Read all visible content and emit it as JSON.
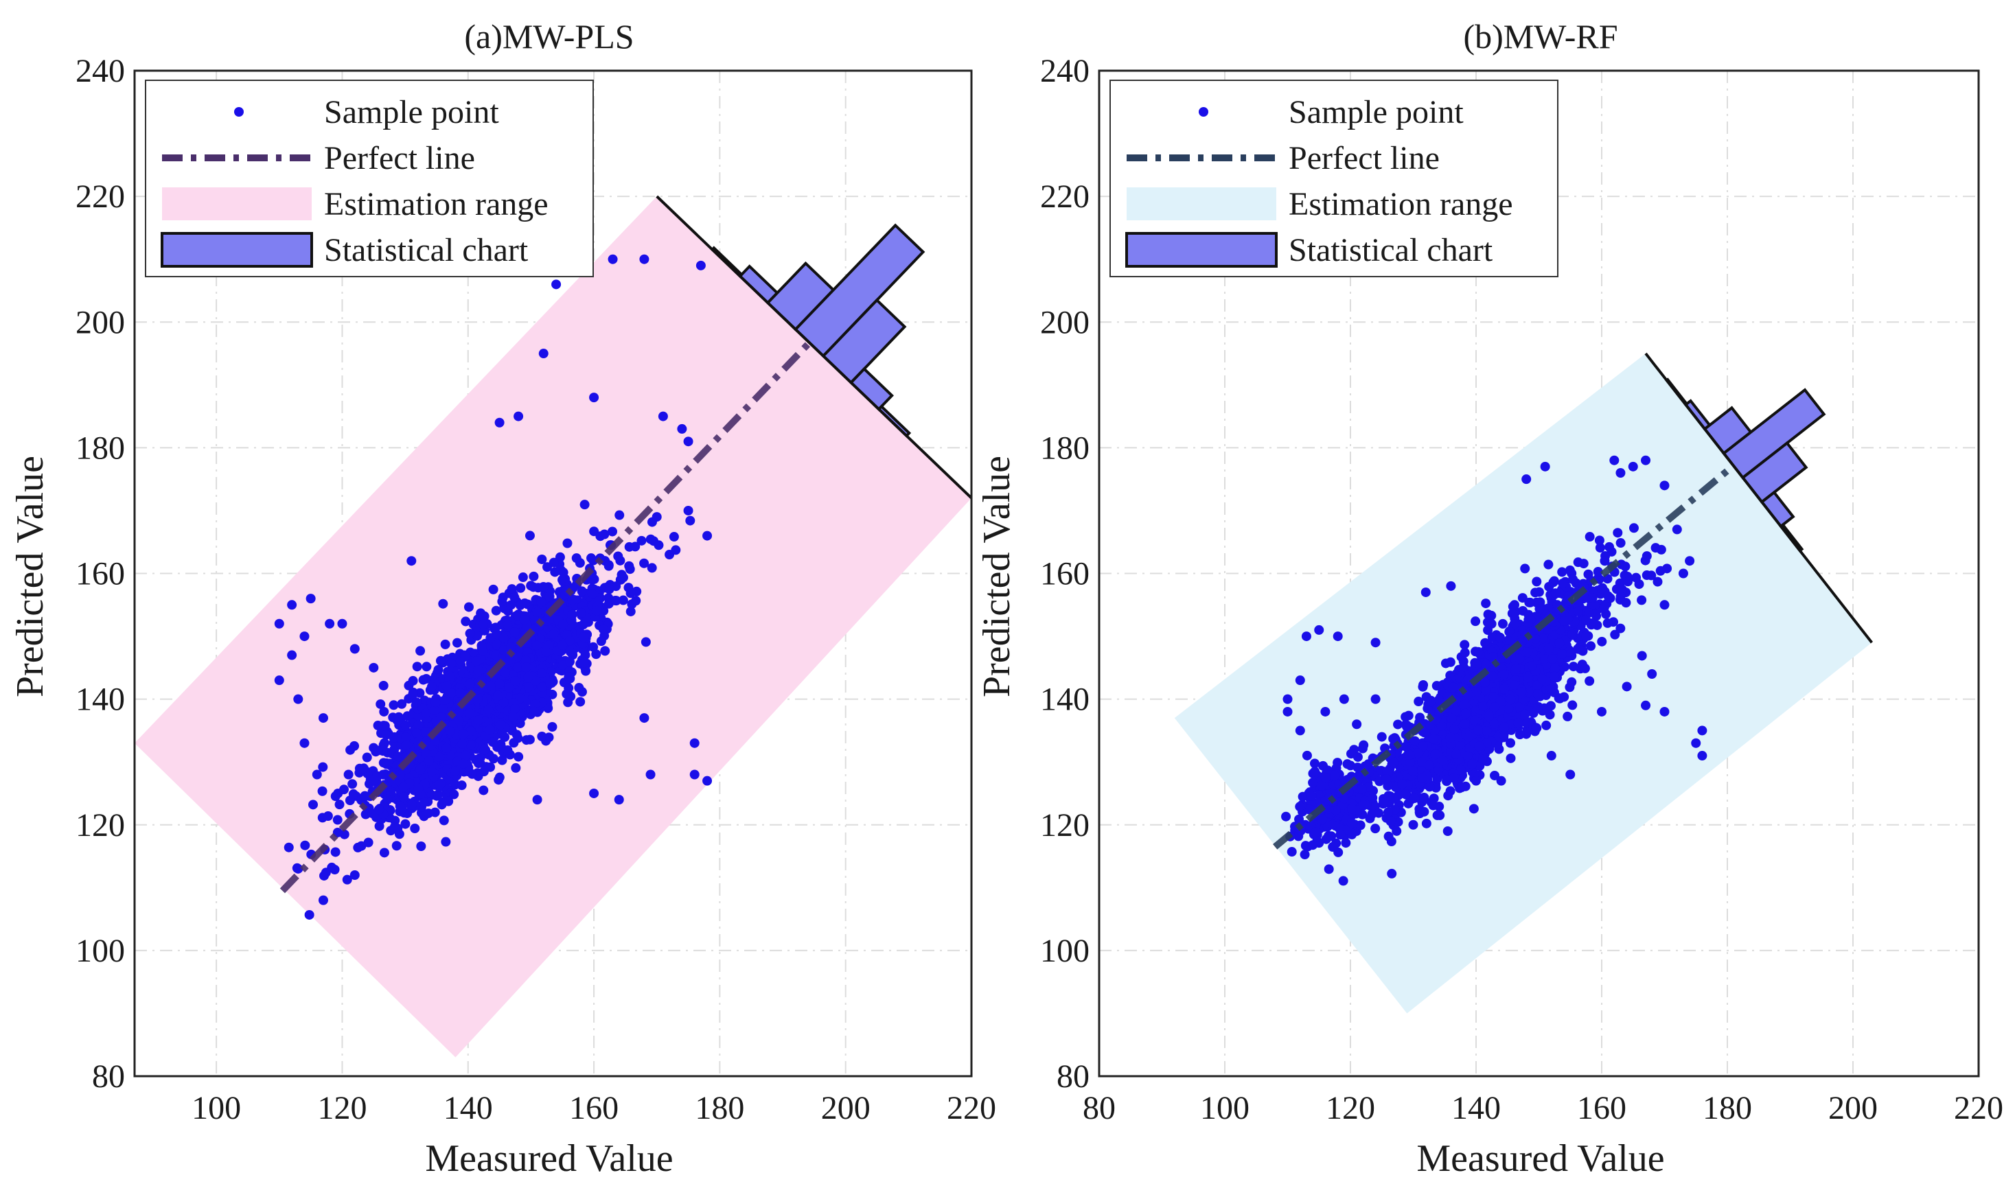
{
  "chart_data": [
    {
      "type": "scatter",
      "title": "(a)MW-PLS",
      "xlabel": "Measured Value",
      "ylabel": "Predicted Value",
      "xlim": [
        87,
        220
      ],
      "ylim": [
        80,
        240
      ],
      "xticks": [
        100,
        120,
        140,
        160,
        180,
        200,
        220
      ],
      "yticks": [
        80,
        100,
        120,
        140,
        160,
        180,
        200,
        220,
        240
      ],
      "grid": true,
      "legend_position": "top-left",
      "legend": [
        "Sample point",
        "Perfect line",
        "Estimation range",
        "Statistical chart"
      ],
      "colors": {
        "points": "#1a0fe8",
        "perfect_line": "#4a2f6b",
        "range": "#fcd9ee",
        "histogram": "#7f7ff2"
      },
      "perfect_line": [
        [
          110.5,
          109.5
        ],
        [
          195,
          197.5
        ]
      ],
      "estimation_range": [
        [
          87,
          133
        ],
        [
          138,
          83
        ],
        [
          220,
          172
        ],
        [
          170,
          220
        ]
      ],
      "cluster": {
        "center": [
          143,
          141
        ],
        "spread_major": 12.5,
        "spread_minor": 3.8,
        "count": 2300,
        "x_range": [
          109,
          179
        ]
      },
      "outliers": [
        [
          115,
          156
        ],
        [
          110,
          152
        ],
        [
          112,
          155
        ],
        [
          118,
          152
        ],
        [
          125,
          145
        ],
        [
          131,
          162
        ],
        [
          145,
          184
        ],
        [
          148,
          185
        ],
        [
          152,
          195
        ],
        [
          154,
          206
        ],
        [
          160,
          188
        ],
        [
          163,
          210
        ],
        [
          168,
          210
        ],
        [
          177,
          209
        ],
        [
          171,
          185
        ],
        [
          174,
          183
        ],
        [
          175,
          181
        ],
        [
          176,
          128
        ],
        [
          178,
          127
        ],
        [
          169,
          128
        ],
        [
          176,
          133
        ],
        [
          164,
          124
        ],
        [
          151,
          124
        ],
        [
          160,
          125
        ],
        [
          112,
          147
        ],
        [
          114,
          133
        ],
        [
          117,
          137
        ],
        [
          110,
          143
        ],
        [
          113,
          140
        ],
        [
          114,
          150
        ],
        [
          120,
          152
        ],
        [
          122,
          148
        ],
        [
          116,
          128
        ],
        [
          121,
          128
        ],
        [
          168,
          137
        ],
        [
          172,
          163
        ],
        [
          178,
          166
        ],
        [
          175,
          170
        ],
        [
          170,
          169
        ],
        [
          117,
          108
        ],
        [
          122,
          112
        ],
        [
          113,
          113
        ]
      ],
      "histogram": {
        "bins": [
          -3,
          -2,
          -1,
          0,
          1,
          2,
          3
        ],
        "counts": [
          3,
          18,
          72,
          190,
          102,
          25,
          5
        ]
      }
    },
    {
      "type": "scatter",
      "title": "(b)MW-RF",
      "xlabel": "Measured Value",
      "ylabel": "Predicted Value",
      "xlim": [
        80,
        220
      ],
      "ylim": [
        80,
        240
      ],
      "xticks": [
        80,
        100,
        120,
        140,
        160,
        180,
        200,
        220
      ],
      "yticks": [
        80,
        100,
        120,
        140,
        160,
        180,
        200,
        220,
        240
      ],
      "grid": true,
      "legend_position": "top-left",
      "legend": [
        "Sample point",
        "Perfect line",
        "Estimation range",
        "Statistical chart"
      ],
      "colors": {
        "points": "#1a0fe8",
        "perfect_line": "#2a3f5e",
        "range": "#dff2fa",
        "histogram": "#7f7ff2"
      },
      "perfect_line": [
        [
          108,
          116.5
        ],
        [
          182,
          178
        ]
      ],
      "estimation_range": [
        [
          92,
          137
        ],
        [
          129,
          90
        ],
        [
          203,
          149
        ],
        [
          167,
          195
        ]
      ],
      "cluster": {
        "center": [
          143,
          141
        ],
        "spread_major": 12.0,
        "spread_minor": 3.3,
        "count": 2000,
        "x_range": [
          108,
          173
        ]
      },
      "cluster2": {
        "center": [
          118,
          124
        ],
        "spread_major": 4.0,
        "spread_minor": 2.5,
        "count": 280
      },
      "outliers": [
        [
          110,
          138
        ],
        [
          112,
          143
        ],
        [
          113,
          150
        ],
        [
          115,
          151
        ],
        [
          118,
          150
        ],
        [
          110,
          140
        ],
        [
          112,
          135
        ],
        [
          116,
          138
        ],
        [
          119,
          140
        ],
        [
          121,
          136
        ],
        [
          124,
          140
        ],
        [
          125,
          134
        ],
        [
          148,
          175
        ],
        [
          151,
          177
        ],
        [
          162,
          178
        ],
        [
          163,
          176
        ],
        [
          165,
          177
        ],
        [
          167,
          178
        ],
        [
          170,
          174
        ],
        [
          172,
          167
        ],
        [
          173,
          160
        ],
        [
          174,
          162
        ],
        [
          176,
          135
        ],
        [
          176,
          131
        ],
        [
          175,
          133
        ],
        [
          167,
          139
        ],
        [
          160,
          138
        ],
        [
          164,
          142
        ],
        [
          170,
          138
        ],
        [
          168,
          144
        ],
        [
          152,
          131
        ],
        [
          155,
          128
        ],
        [
          140,
          127
        ],
        [
          144,
          127
        ],
        [
          130,
          120
        ],
        [
          131,
          122
        ],
        [
          126,
          122
        ],
        [
          138,
          146
        ],
        [
          136,
          158
        ],
        [
          132,
          157
        ],
        [
          124,
          149
        ],
        [
          170,
          155
        ]
      ],
      "histogram": {
        "bins": [
          -3,
          -2,
          -1,
          0,
          1,
          2,
          3
        ],
        "counts": [
          2,
          10,
          55,
          165,
          90,
          25,
          4
        ]
      }
    }
  ]
}
